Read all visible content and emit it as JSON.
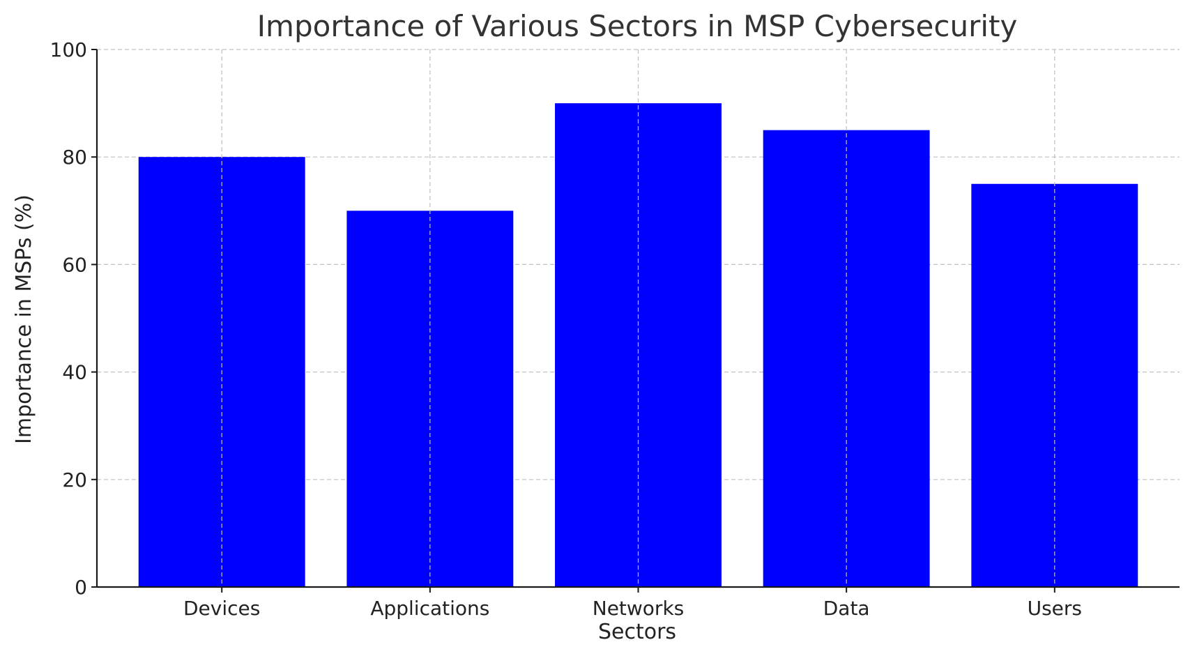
{
  "chart_data": {
    "type": "bar",
    "title": "Importance of Various Sectors in MSP Cybersecurity",
    "xlabel": "Sectors",
    "ylabel": "Importance in MSPs (%)",
    "categories": [
      "Devices",
      "Applications",
      "Networks",
      "Data",
      "Users"
    ],
    "values": [
      80,
      70,
      90,
      85,
      75
    ],
    "ylim": [
      0,
      100
    ],
    "yticks": [
      0,
      20,
      40,
      60,
      80,
      100
    ],
    "grid": true,
    "bar_color": "#0000ff"
  }
}
